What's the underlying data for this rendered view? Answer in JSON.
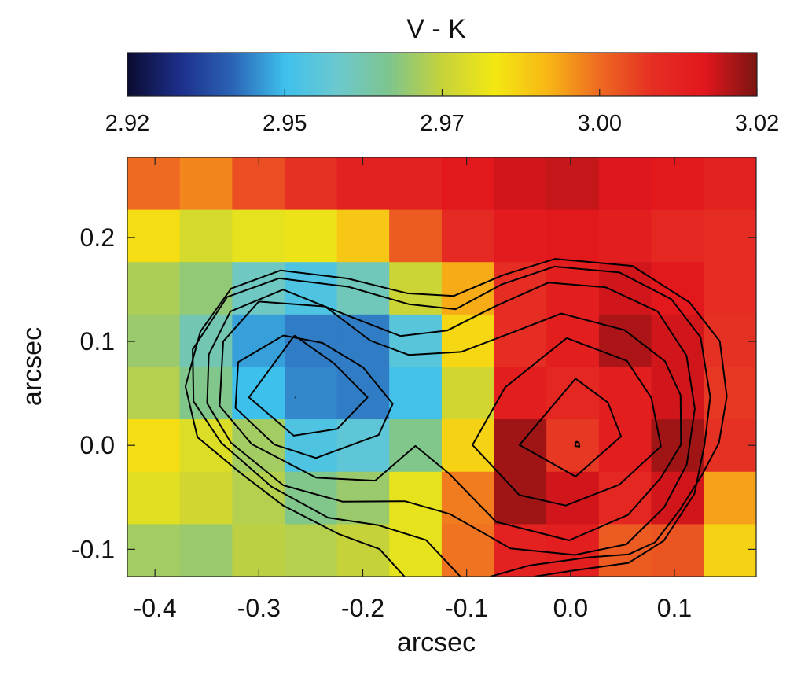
{
  "chart_data": {
    "type": "heatmap",
    "title": "V - K",
    "xlabel": "arcsec",
    "ylabel": "arcsec",
    "xlim": [
      -0.4266,
      0.1787
    ],
    "ylim": [
      -0.1262,
      0.2771
    ],
    "x_ticks": [
      -0.4,
      -0.3,
      -0.2,
      -0.1,
      0.0,
      0.1
    ],
    "y_ticks": [
      -0.1,
      0.0,
      0.1,
      0.2
    ],
    "x_tick_labels": [
      "-0.4",
      "-0.3",
      "-0.2",
      "-0.1",
      "0.0",
      "0.1"
    ],
    "y_tick_labels": [
      "-0.1",
      "0.0",
      "0.1",
      "0.2"
    ],
    "pixel_size": 0.0504,
    "x_centers": [
      -0.4014,
      -0.351,
      -0.3005,
      -0.2501,
      -0.1997,
      -0.1493,
      -0.0988,
      -0.0484,
      0.002,
      0.0525,
      0.1029,
      0.1533
    ],
    "y_centers": [
      0.2519,
      0.2015,
      0.1511,
      0.1007,
      0.0503,
      -0.0001,
      -0.0506,
      -0.101
    ],
    "colorbar": {
      "label": "V - K",
      "range": [
        2.92,
        3.02
      ],
      "tick_values": [
        2.92,
        2.945,
        2.97,
        2.995,
        3.02
      ],
      "tick_labels": [
        "2.92",
        "2.95",
        "2.97",
        "3.00",
        "3.02"
      ],
      "colors": [
        "#0b0b30",
        "#1c2f8a",
        "#2a63b5",
        "#3ec0ed",
        "#6bc9cf",
        "#7ec58d",
        "#c6d23a",
        "#f3e812",
        "#f8b715",
        "#ee6a22",
        "#e52f23",
        "#e2161d",
        "#7a1512"
      ]
    },
    "values": [
      [
        2.995,
        2.992,
        2.999,
        3.003,
        3.008,
        3.008,
        3.011,
        3.013,
        3.014,
        3.012,
        3.011,
        3.008
      ],
      [
        2.98,
        2.973,
        2.976,
        2.977,
        2.984,
        2.997,
        3.005,
        3.01,
        3.011,
        3.009,
        3.006,
        3.004
      ],
      [
        2.967,
        2.964,
        2.955,
        2.948,
        2.956,
        2.971,
        2.988,
        3.004,
        3.009,
        3.013,
        3.011,
        3.004
      ],
      [
        2.965,
        2.957,
        2.942,
        2.939,
        2.939,
        2.95,
        2.981,
        3.004,
        3.009,
        3.016,
        3.013,
        3.003
      ],
      [
        2.968,
        2.962,
        2.945,
        2.94,
        2.939,
        2.946,
        2.972,
        3.009,
        3.006,
        3.009,
        3.013,
        3.002
      ],
      [
        2.98,
        2.974,
        2.966,
        2.948,
        2.951,
        2.962,
        2.982,
        3.017,
        3.002,
        3.009,
        3.017,
        3.003
      ],
      [
        2.975,
        2.972,
        2.968,
        2.962,
        2.965,
        2.976,
        2.993,
        3.017,
        3.013,
        3.006,
        3.013,
        2.989
      ],
      [
        2.966,
        2.965,
        2.969,
        2.968,
        2.97,
        2.976,
        2.994,
        3.008,
        3.009,
        2.997,
        2.998,
        2.982
      ]
    ],
    "contours": [
      [
        [
          -0.2653,
          0.0462
        ],
        [
          -0.2649,
          0.0459
        ]
      ],
      [
        [
          0.0055,
          0.0038
        ],
        [
          0.008,
          0.0024
        ],
        [
          0.0086,
          -0.0012
        ],
        [
          0.0043,
          -0.0007
        ],
        [
          0.0055,
          0.0038
        ]
      ],
      [
        [
          -0.2657,
          0.1057
        ],
        [
          -0.3095,
          0.0462
        ],
        [
          -0.2664,
          0.0093
        ],
        [
          -0.2245,
          0.0159
        ],
        [
          -0.1954,
          0.0462
        ],
        [
          -0.2277,
          0.0788
        ],
        [
          -0.2657,
          0.1057
        ]
      ],
      [
        [
          0.0048,
          0.0642
        ],
        [
          -0.0491,
          0.0004
        ],
        [
          0.0048,
          -0.03
        ],
        [
          0.0486,
          0.0086
        ],
        [
          0.036,
          0.0412
        ],
        [
          0.0048,
          0.0642
        ]
      ],
      [
        [
          -0.2763,
          0.1057
        ],
        [
          -0.3199,
          0.0801
        ],
        [
          -0.3225,
          0.036
        ],
        [
          -0.2851,
          0.0008
        ],
        [
          -0.245,
          -0.0122
        ],
        [
          -0.1847,
          0.0101
        ],
        [
          -0.1712,
          0.04
        ],
        [
          -0.1998,
          0.0751
        ],
        [
          -0.2387,
          0.0985
        ],
        [
          -0.2763,
          0.1057
        ]
      ],
      [
        [
          -0.0037,
          0.1032
        ],
        [
          -0.063,
          0.0558
        ],
        [
          -0.0944,
          0.0004
        ],
        [
          -0.0493,
          -0.0478
        ],
        [
          -0.0047,
          -0.0579
        ],
        [
          0.047,
          -0.0378
        ],
        [
          0.087,
          -0.0009
        ],
        [
          0.0778,
          0.0456
        ],
        [
          0.0543,
          0.0813
        ],
        [
          -0.0037,
          0.1032
        ]
      ],
      [
        [
          -0.3002,
          0.1383
        ],
        [
          -0.3343,
          0.1
        ],
        [
          -0.3378,
          0.038
        ],
        [
          -0.3069,
          0.0012
        ],
        [
          -0.2448,
          -0.0312
        ],
        [
          -0.1881,
          -0.034
        ],
        [
          -0.1493,
          -0.0005
        ],
        [
          -0.1165,
          -0.0275
        ],
        [
          -0.0716,
          -0.0736
        ],
        [
          -0.0014,
          -0.0914
        ],
        [
          0.0554,
          -0.0669
        ],
        [
          0.087,
          -0.0311
        ],
        [
          0.1063,
          0.0008
        ],
        [
          0.1059,
          0.0482
        ],
        [
          0.0909,
          0.0809
        ],
        [
          0.0519,
          0.1109
        ],
        [
          -0.0089,
          0.1268
        ],
        [
          -0.0545,
          0.1092
        ],
        [
          -0.1053,
          0.0899
        ],
        [
          -0.1558,
          0.087
        ],
        [
          -0.1928,
          0.1008
        ],
        [
          -0.2363,
          0.1336
        ],
        [
          -0.3002,
          0.1383
        ]
      ],
      [
        [
          -0.2767,
          0.1498
        ],
        [
          -0.3274,
          0.1289
        ],
        [
          -0.3482,
          0.0874
        ],
        [
          -0.3498,
          0.0405
        ],
        [
          -0.3269,
          0.0025
        ],
        [
          -0.2764,
          -0.0384
        ],
        [
          -0.2196,
          -0.0541
        ],
        [
          -0.1592,
          -0.0537
        ],
        [
          -0.1159,
          -0.0661
        ],
        [
          -0.0579,
          -0.0991
        ],
        [
          0.004,
          -0.1054
        ],
        [
          0.0538,
          -0.0952
        ],
        [
          0.0901,
          -0.0596
        ],
        [
          0.1119,
          -0.0184
        ],
        [
          0.1196,
          0.0353
        ],
        [
          0.1117,
          0.0863
        ],
        [
          0.0838,
          0.1288
        ],
        [
          0.0338,
          0.1521
        ],
        [
          -0.0214,
          0.1566
        ],
        [
          -0.0724,
          0.1339
        ],
        [
          -0.1188,
          0.1104
        ],
        [
          -0.1638,
          0.1052
        ],
        [
          -0.2105,
          0.1233
        ],
        [
          -0.2767,
          0.1498
        ]
      ],
      [
        [
          -0.2806,
          0.1607
        ],
        [
          -0.3306,
          0.1427
        ],
        [
          -0.3637,
          0.0923
        ],
        [
          -0.3629,
          0.0423
        ],
        [
          -0.3362,
          0.0024
        ],
        [
          -0.2878,
          -0.0398
        ],
        [
          -0.2334,
          -0.0695
        ],
        [
          -0.1848,
          -0.0769
        ],
        [
          -0.1391,
          -0.0911
        ],
        [
          -0.106,
          -0.1262
        ]
      ],
      [
        [
          -0.0348,
          -0.1262
        ],
        [
          0.0014,
          -0.1206
        ],
        [
          0.0558,
          -0.113
        ],
        [
          0.0897,
          -0.0918
        ],
        [
          0.1192,
          -0.0466
        ],
        [
          0.129,
          0.0008
        ],
        [
          0.1344,
          0.0464
        ],
        [
          0.1251,
          0.104
        ],
        [
          0.097,
          0.1407
        ],
        [
          0.0472,
          0.1663
        ],
        [
          -0.0155,
          0.172
        ],
        [
          -0.0662,
          0.1549
        ],
        [
          -0.1106,
          0.131
        ],
        [
          -0.1557,
          0.1358
        ],
        [
          -0.2141,
          0.1526
        ],
        [
          -0.2806,
          0.1607
        ]
      ],
      [
        [
          -0.0772,
          -0.1262
        ],
        [
          -0.0398,
          -0.1155
        ],
        [
          0.0172,
          -0.1077
        ],
        [
          0.0558,
          -0.1049
        ],
        [
          0.0814,
          -0.0932
        ],
        [
          0.105,
          -0.0623
        ],
        [
          0.1264,
          -0.0287
        ],
        [
          0.1428,
          0.0024
        ],
        [
          0.1504,
          0.047
        ],
        [
          0.1437,
          0.1003
        ],
        [
          0.1145,
          0.1376
        ],
        [
          0.0596,
          0.1726
        ],
        [
          -0.0148,
          0.1794
        ],
        [
          -0.0649,
          0.1638
        ],
        [
          -0.1124,
          0.1438
        ],
        [
          -0.157,
          0.1463
        ],
        [
          -0.2148,
          0.1606
        ],
        [
          -0.279,
          0.1684
        ],
        [
          -0.3267,
          0.1509
        ],
        [
          -0.3563,
          0.1094
        ],
        [
          -0.3707,
          0.0566
        ],
        [
          -0.3591,
          0.0078
        ],
        [
          -0.3183,
          -0.0261
        ],
        [
          -0.2767,
          -0.0578
        ],
        [
          -0.2229,
          -0.0854
        ],
        [
          -0.1839,
          -0.0998
        ],
        [
          -0.1598,
          -0.1262
        ]
      ]
    ]
  }
}
